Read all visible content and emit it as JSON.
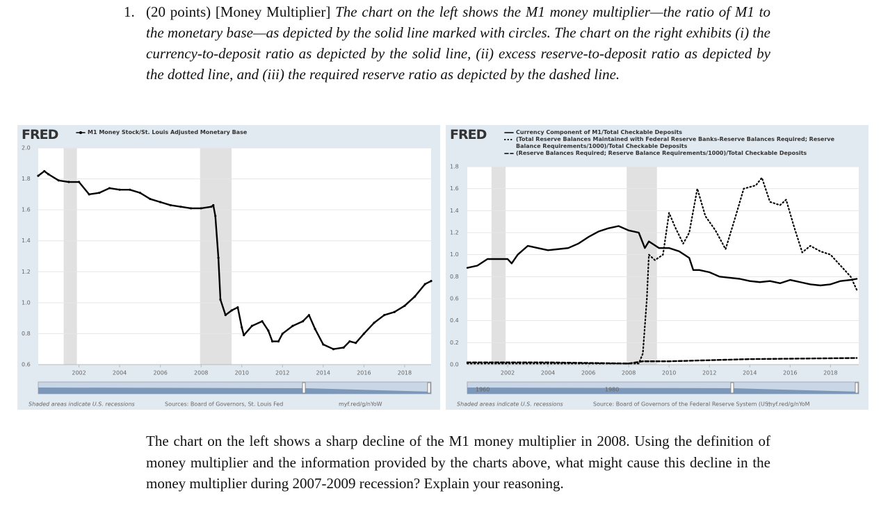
{
  "question": {
    "number": "1.",
    "points": "(20 points)",
    "topic": "[Money Multiplier]",
    "prompt": "The chart on the left shows the M1 money multiplier—the ratio of M1 to the monetary base—as depicted by the solid line marked with circles. The chart on the right exhibits (i) the currency-to-deposit ratio as depicted by the solid line, (ii) excess reserve-to-deposit ratio as depicted by the dotted line, and (iii) the required reserve ratio as depicted by the dashed line.",
    "followup": "The chart on the left shows a sharp decline of the M1 money multiplier in 2008. Using the definition of money multiplier and the information provided by the charts above, what might cause this decline in the money multiplier during 2007-2009 recession? Explain your reasoning."
  },
  "chart_data": [
    {
      "type": "line",
      "logo": "FRED",
      "grid": true,
      "xlim": [
        2000,
        2019.3
      ],
      "ylim": [
        0.6,
        2.0
      ],
      "xticks": [
        2002,
        2004,
        2006,
        2008,
        2010,
        2012,
        2014,
        2016,
        2018
      ],
      "yticks": [
        0.6,
        0.8,
        {
          "value": 1,
          "label": "1.0"
        },
        1.2,
        1.4,
        1.6,
        1.8,
        {
          "value": 2,
          "label": "2.0"
        }
      ],
      "recessions": [
        [
          2001.25,
          2001.9
        ],
        [
          2007.95,
          2009.5
        ]
      ],
      "series": [
        {
          "name": "M1 Money Stock/St. Louis Adjusted Monetary Base",
          "color": "#000000",
          "style": "solid",
          "marker": "circle",
          "x": [
            2000,
            2000.3,
            2000.5,
            2001,
            2001.5,
            2002,
            2002.5,
            2003,
            2003.5,
            2004,
            2004.5,
            2005,
            2005.5,
            2006,
            2006.5,
            2007,
            2007.5,
            2008,
            2008.5,
            2008.6,
            2008.7,
            2008.85,
            2008.95,
            2009.2,
            2009.5,
            2009.8,
            2010,
            2010.1,
            2010.5,
            2011,
            2011.3,
            2011.5,
            2011.8,
            2012,
            2012.5,
            2013,
            2013.3,
            2013.6,
            2014,
            2014.5,
            2015,
            2015.3,
            2015.6,
            2016,
            2016.5,
            2017,
            2017.5,
            2018,
            2018.5,
            2019,
            2019.3
          ],
          "values": [
            1.82,
            1.85,
            1.83,
            1.79,
            1.78,
            1.78,
            1.7,
            1.71,
            1.74,
            1.73,
            1.73,
            1.71,
            1.67,
            1.65,
            1.63,
            1.62,
            1.61,
            1.61,
            1.62,
            1.63,
            1.56,
            1.29,
            1.02,
            0.92,
            0.95,
            0.97,
            0.84,
            0.79,
            0.85,
            0.88,
            0.82,
            0.75,
            0.75,
            0.8,
            0.85,
            0.88,
            0.92,
            0.83,
            0.73,
            0.7,
            0.71,
            0.75,
            0.74,
            0.8,
            0.87,
            0.92,
            0.94,
            0.98,
            1.04,
            1.12,
            1.14
          ]
        }
      ],
      "navigator_labels": [],
      "notes": [
        "Shaded areas indicate U.S. recessions",
        "Sources: Board of Governors, St. Louis Fed",
        "myf.red/g/nYoW"
      ]
    },
    {
      "type": "line",
      "logo": "FRED",
      "grid": true,
      "xlim": [
        2000,
        2019.4
      ],
      "ylim": [
        0,
        1.8
      ],
      "xticks": [
        2002,
        2004,
        2006,
        2008,
        2010,
        2012,
        2014,
        2016,
        2018
      ],
      "yticks": [
        {
          "value": 0,
          "label": "0.0"
        },
        0.2,
        0.4,
        0.6,
        0.8,
        {
          "value": 1,
          "label": "1.0"
        },
        1.2,
        1.4,
        1.6,
        1.8
      ],
      "recessions": [
        [
          2001.2,
          2001.9
        ],
        [
          2007.9,
          2009.4
        ]
      ],
      "series": [
        {
          "name": "Currency Component of M1/Total Checkable Deposits",
          "color": "#000000",
          "style": "solid",
          "x": [
            2000,
            2000.5,
            2001,
            2002,
            2002.2,
            2002.5,
            2003,
            2003.5,
            2004,
            2004.5,
            2005,
            2005.5,
            2006,
            2006.5,
            2007,
            2007.5,
            2008,
            2008.5,
            2008.8,
            2009,
            2009.5,
            2010,
            2010.5,
            2011,
            2011.2,
            2011.5,
            2012,
            2012.5,
            2013,
            2013.5,
            2014,
            2014.5,
            2015,
            2015.5,
            2016,
            2016.5,
            2017,
            2017.5,
            2018,
            2018.5,
            2019,
            2019.3
          ],
          "values": [
            0.88,
            0.9,
            0.96,
            0.96,
            0.92,
            1.0,
            1.08,
            1.06,
            1.04,
            1.05,
            1.06,
            1.1,
            1.16,
            1.21,
            1.24,
            1.26,
            1.22,
            1.2,
            1.06,
            1.12,
            1.06,
            1.06,
            1.03,
            0.97,
            0.86,
            0.86,
            0.84,
            0.8,
            0.79,
            0.78,
            0.76,
            0.75,
            0.76,
            0.74,
            0.77,
            0.75,
            0.73,
            0.72,
            0.73,
            0.76,
            0.77,
            0.78
          ]
        },
        {
          "name": "(Total Reserve Balances Maintained with Federal Reserve Banks-Reserve Balances Required; Reserve Balance Requirements/1000)/Total Checkable Deposits",
          "color": "#000000",
          "style": "dotted",
          "x": [
            2000,
            2004,
            2008.5,
            2008.7,
            2008.9,
            2009,
            2009.3,
            2009.7,
            2010,
            2010.3,
            2010.7,
            2011,
            2011.4,
            2011.8,
            2012.3,
            2012.8,
            2013.3,
            2013.7,
            2014.3,
            2014.6,
            2015,
            2015.5,
            2015.8,
            2016.2,
            2016.6,
            2017,
            2017.5,
            2018,
            2018.5,
            2019,
            2019.3
          ],
          "values": [
            0.01,
            0.01,
            0.01,
            0.1,
            0.6,
            1.0,
            0.95,
            1.0,
            1.38,
            1.25,
            1.1,
            1.2,
            1.6,
            1.35,
            1.22,
            1.05,
            1.35,
            1.6,
            1.63,
            1.7,
            1.48,
            1.45,
            1.5,
            1.25,
            1.02,
            1.08,
            1.03,
            1.0,
            0.9,
            0.8,
            0.68
          ]
        },
        {
          "name": "(Reserve Balances Required; Reserve Balance Requirements/1000)/Total Checkable Deposits",
          "color": "#000000",
          "style": "dashed",
          "x": [
            2000,
            2004,
            2008,
            2008.7,
            2010,
            2014,
            2019.3
          ],
          "values": [
            0.02,
            0.02,
            0.01,
            0.03,
            0.03,
            0.05,
            0.06
          ]
        }
      ],
      "navigator_labels": [
        "1960",
        "1980"
      ],
      "notes": [
        "Shaded areas indicate U.S. recessions",
        "Source: Board of Governors of the Federal Reserve System (US)",
        "myf.red/g/nYoM"
      ]
    }
  ]
}
